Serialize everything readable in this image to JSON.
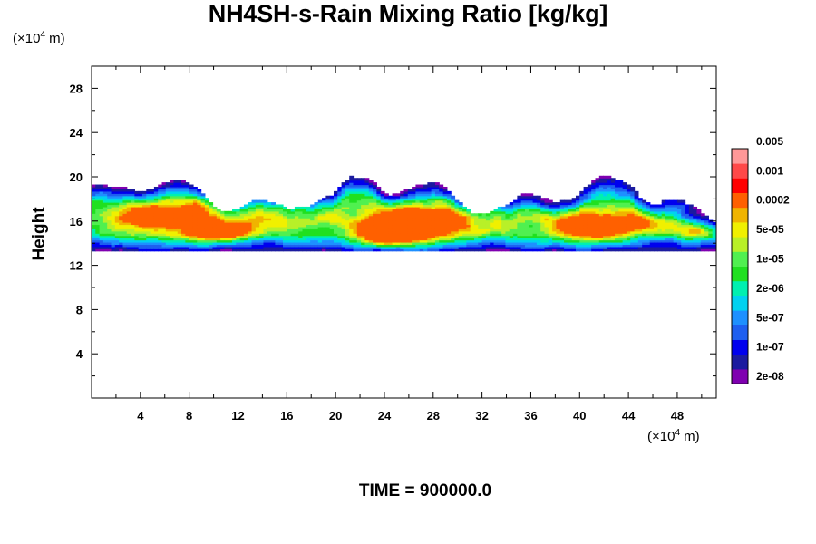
{
  "chart_data": {
    "type": "heatmap",
    "title": "NH4SH-s-Rain Mixing Ratio [kg/kg]",
    "ylabel": "Height",
    "xlabel": "",
    "x_unit": {
      "prefix": "(×10",
      "exp": "4",
      "suffix": " m)"
    },
    "y_unit": {
      "prefix": "(×10",
      "exp": "4",
      "suffix": " m)"
    },
    "xlim": [
      0,
      51.2
    ],
    "ylim": [
      0,
      30
    ],
    "x_ticks": [
      4,
      8,
      12,
      16,
      20,
      24,
      28,
      32,
      36,
      40,
      44,
      48
    ],
    "y_ticks": [
      4,
      8,
      12,
      16,
      20,
      24,
      28
    ],
    "x_tick_labels": [
      "4",
      "8",
      "12",
      "16",
      "20",
      "24",
      "28",
      "32",
      "36",
      "40",
      "44",
      "48"
    ],
    "y_tick_labels": [
      "4",
      "8",
      "12",
      "16",
      "20",
      "24",
      "28"
    ],
    "colorbar": {
      "colors": [
        "#7f00b0",
        "#1b1b9f",
        "#0000ee",
        "#1e5ff0",
        "#1e90ff",
        "#00d2f0",
        "#00f0b0",
        "#20e020",
        "#50f050",
        "#b8f028",
        "#f0f000",
        "#f0b400",
        "#ff6000",
        "#ff0000",
        "#ff4848",
        "#ff9898"
      ],
      "labels": [
        "2e-08",
        "1e-07",
        "5e-07",
        "2e-06",
        "1e-05",
        "5e-05",
        "0.0002",
        "0.001",
        "0.005"
      ]
    },
    "cloud_layer": {
      "bottom": 13.3,
      "top": 20.0
    },
    "footer": "TIME = 900000.0"
  }
}
